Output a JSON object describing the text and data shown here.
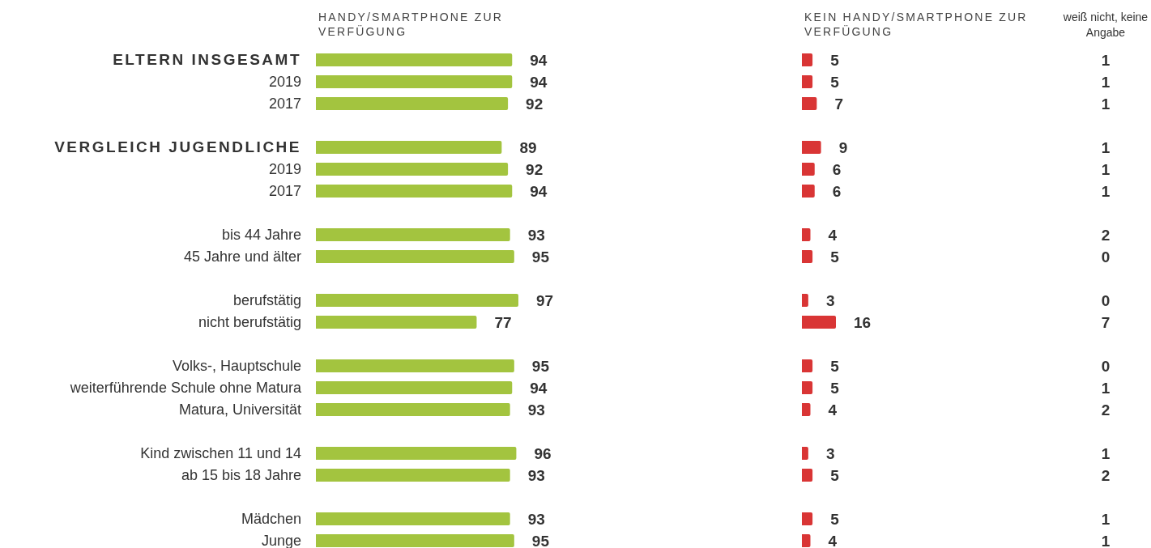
{
  "chart_data": [
    {
      "type": "bar",
      "orientation": "horizontal",
      "title": "HANDY/SMARTPHONE ZUR VERFÜGUNG",
      "categories": [
        "ELTERN INSGESAMT",
        "2019",
        "2017",
        null,
        "VERGLEICH JUGENDLICHE",
        "2019",
        "2017",
        null,
        "bis 44 Jahre",
        "45 Jahre und älter",
        null,
        "berufstätig",
        "nicht berufstätig",
        null,
        "Volks-, Hauptschule",
        "weiterführende Schule ohne Matura",
        "Matura, Universität",
        null,
        "Kind zwischen 11 und 14",
        "ab 15 bis 18 Jahre",
        null,
        "Mädchen",
        "Junge"
      ],
      "values": [
        94,
        94,
        92,
        null,
        89,
        92,
        94,
        null,
        93,
        95,
        null,
        97,
        77,
        null,
        95,
        94,
        93,
        null,
        96,
        93,
        null,
        93,
        95
      ],
      "color": "#a3c43f",
      "data_labels": true
    },
    {
      "type": "bar",
      "orientation": "horizontal",
      "title": "KEIN HANDY/SMARTPHONE ZUR VERFÜGUNG",
      "values": [
        5,
        5,
        7,
        null,
        9,
        6,
        6,
        null,
        4,
        5,
        null,
        3,
        16,
        null,
        5,
        5,
        4,
        null,
        3,
        5,
        null,
        5,
        4
      ],
      "color": "#d93535",
      "data_labels": true
    },
    {
      "type": "other",
      "title": "weiß nicht, keine Angabe",
      "data_labels": true,
      "values": [
        1,
        1,
        1,
        null,
        1,
        1,
        1,
        null,
        2,
        0,
        null,
        0,
        7,
        null,
        0,
        1,
        2,
        null,
        1,
        2,
        null,
        1,
        1
      ]
    }
  ]
}
